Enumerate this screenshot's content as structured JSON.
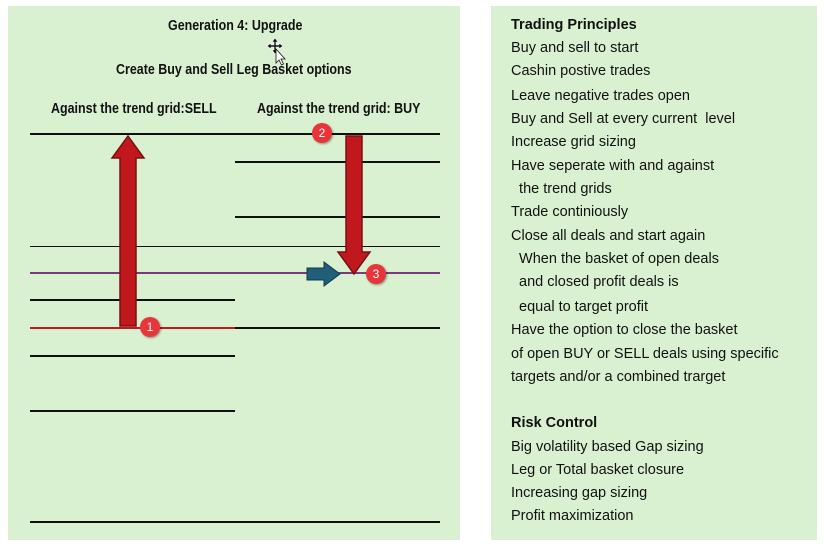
{
  "diagram": {
    "title": "Generation 4: Upgrade",
    "subtitle": "Create Buy and Sell Leg Basket options",
    "sell_heading": "Against the trend grid:SELL",
    "buy_heading": "Against the trend grid: BUY",
    "badges": [
      "1",
      "2",
      "3"
    ],
    "colors": {
      "panel": "#d9f1d1",
      "arrow_red": "#c0181c",
      "arrow_blue": "#1f5f7a",
      "price_line_purple": "#7a3b7a",
      "sell_level_red": "#c0181c",
      "badge": "#e8353a"
    }
  },
  "trading_principles": {
    "heading": "Trading Principles",
    "lines": [
      "Buy and sell to start",
      "Cashin postive trades",
      "Leave negative trades open",
      "Buy and Sell at every current  level",
      "Increase grid sizing",
      "Have seperate with and against",
      "  the trend grids",
      "Trade continiously",
      "Close all deals and start again",
      "  When the basket of open deals",
      "  and closed profit deals is",
      "  equal to target profit",
      "Have the option to close the basket",
      "of open BUY or SELL deals using specific",
      "targets and/or a combined trarget"
    ]
  },
  "risk_control": {
    "heading": "Risk Control",
    "lines": [
      "Big volatility based Gap sizing",
      "Leg or Total basket closure",
      "Increasing gap sizing",
      "Profit maximization"
    ]
  }
}
